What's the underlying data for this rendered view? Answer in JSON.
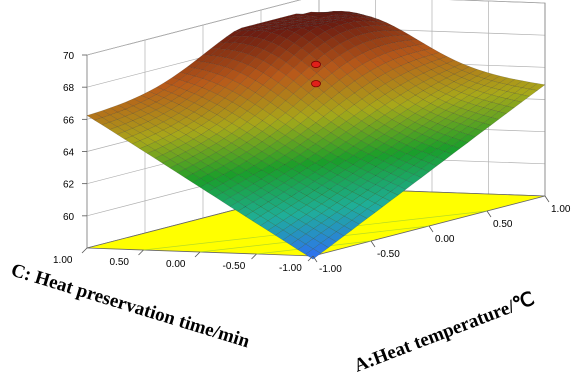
{
  "chart_data": {
    "type": "surface",
    "x_axis": {
      "label": "A:Heat temperature/℃",
      "range": [
        -1,
        1
      ],
      "ticks": [
        "-1.00",
        "-0.50",
        "0.00",
        "0.50",
        "1.00"
      ],
      "tick_values": [
        -1,
        -0.5,
        0,
        0.5,
        1
      ]
    },
    "y_axis": {
      "label": "C: Heat preservation time/min",
      "range": [
        -1,
        1
      ],
      "ticks": [
        "-1.00",
        "-0.50",
        "0.00",
        "0.50",
        "1.00"
      ],
      "tick_values": [
        -1,
        -0.5,
        0,
        0.5,
        1
      ]
    },
    "z_axis": {
      "label": "",
      "range": [
        58,
        70
      ],
      "ticks": [
        "60",
        "62",
        "64",
        "66",
        "68",
        "70"
      ],
      "tick_values": [
        60,
        62,
        64,
        66,
        68,
        70
      ]
    },
    "surface_corners": [
      {
        "a": -1,
        "c": -1,
        "z": 57.8
      },
      {
        "a": 1,
        "c": -1,
        "z": 64.9
      },
      {
        "a": -1,
        "c": 1,
        "z": 66.2
      },
      {
        "a": 1,
        "c": 1,
        "z": 66.4
      }
    ],
    "surface_peak": {
      "a": 0.55,
      "c": 0.65,
      "z": 69.2
    },
    "design_points": [
      {
        "a": 0,
        "c": 0,
        "z": 67.8
      },
      {
        "a": 0,
        "c": 0,
        "z": 66.6
      }
    ],
    "floor_color": "#ffff00",
    "colormap": [
      "#2f6df5",
      "#1fae9a",
      "#1a9e2a",
      "#a8a81a",
      "#b85a1a",
      "#6a1a10"
    ],
    "grid": true
  }
}
